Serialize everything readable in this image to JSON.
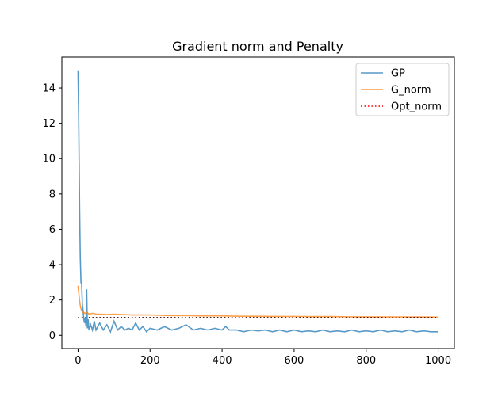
{
  "chart_data": {
    "type": "line",
    "title": "Gradient norm and Penalty",
    "xlabel": "",
    "ylabel": "",
    "xlim": [
      -45,
      1045
    ],
    "ylim": [
      -0.75,
      15.75
    ],
    "x_ticks": [
      0,
      200,
      400,
      600,
      800,
      1000
    ],
    "y_ticks": [
      0,
      2,
      4,
      6,
      8,
      10,
      12,
      14
    ],
    "grid": false,
    "legend_position": "top-right",
    "series": [
      {
        "name": "GP",
        "color": "#1f77b4",
        "style": "solid",
        "x": [
          0,
          2,
          4,
          6,
          8,
          10,
          12,
          14,
          16,
          18,
          20,
          22,
          24,
          26,
          28,
          30,
          35,
          40,
          45,
          50,
          60,
          70,
          80,
          90,
          100,
          110,
          120,
          130,
          140,
          150,
          160,
          170,
          180,
          190,
          200,
          220,
          240,
          260,
          280,
          300,
          320,
          340,
          360,
          380,
          400,
          410,
          420,
          440,
          460,
          480,
          500,
          520,
          540,
          560,
          580,
          600,
          620,
          640,
          660,
          680,
          700,
          720,
          740,
          760,
          780,
          800,
          820,
          840,
          860,
          880,
          900,
          920,
          940,
          960,
          980,
          1000
        ],
        "values": [
          15.0,
          12.0,
          7.5,
          4.5,
          3.0,
          2.9,
          1.7,
          1.4,
          0.9,
          0.7,
          1.0,
          0.5,
          2.6,
          0.4,
          0.9,
          0.3,
          0.6,
          0.3,
          0.8,
          0.3,
          0.7,
          0.3,
          0.6,
          0.2,
          0.8,
          0.3,
          0.5,
          0.3,
          0.4,
          0.3,
          0.7,
          0.3,
          0.5,
          0.2,
          0.4,
          0.3,
          0.5,
          0.3,
          0.4,
          0.6,
          0.3,
          0.4,
          0.3,
          0.4,
          0.3,
          0.5,
          0.3,
          0.3,
          0.2,
          0.3,
          0.25,
          0.3,
          0.2,
          0.3,
          0.2,
          0.3,
          0.2,
          0.25,
          0.2,
          0.3,
          0.2,
          0.25,
          0.2,
          0.3,
          0.2,
          0.25,
          0.2,
          0.3,
          0.2,
          0.25,
          0.2,
          0.3,
          0.2,
          0.25,
          0.2,
          0.2
        ]
      },
      {
        "name": "G_norm",
        "color": "#ff7f0e",
        "style": "solid",
        "x": [
          0,
          2,
          4,
          6,
          8,
          10,
          12,
          14,
          16,
          18,
          20,
          25,
          30,
          40,
          50,
          60,
          80,
          100,
          150,
          200,
          250,
          300,
          350,
          400,
          450,
          500,
          550,
          600,
          650,
          700,
          750,
          800,
          850,
          900,
          950,
          1000
        ],
        "values": [
          2.8,
          2.4,
          2.0,
          1.7,
          1.5,
          1.4,
          1.35,
          1.3,
          1.3,
          1.25,
          1.25,
          1.3,
          1.2,
          1.25,
          1.2,
          1.2,
          1.18,
          1.2,
          1.15,
          1.15,
          1.12,
          1.12,
          1.1,
          1.1,
          1.08,
          1.08,
          1.07,
          1.07,
          1.06,
          1.06,
          1.05,
          1.05,
          1.04,
          1.04,
          1.04,
          1.03
        ]
      },
      {
        "name": "Opt_norm",
        "color": "#ff0000",
        "style": "dotted",
        "x": [
          0,
          1000
        ],
        "values": [
          1.0,
          1.0
        ]
      }
    ]
  }
}
